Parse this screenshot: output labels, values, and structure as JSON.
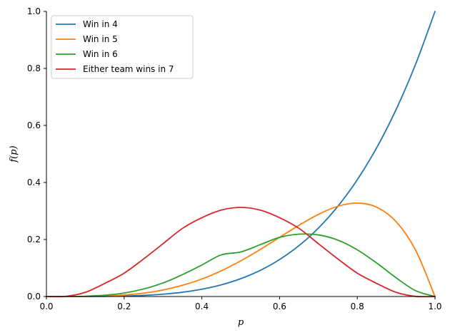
{
  "chart_data": {
    "type": "line",
    "title": "",
    "xlabel": "p",
    "ylabel": "f(p)",
    "xlim": [
      0,
      1
    ],
    "ylim": [
      0,
      1
    ],
    "x_ticks": [
      {
        "value": 0.0,
        "label": "0.0"
      },
      {
        "value": 0.2,
        "label": "0.2"
      },
      {
        "value": 0.4,
        "label": "0.4"
      },
      {
        "value": 0.6,
        "label": "0.6"
      },
      {
        "value": 0.8,
        "label": "0.8"
      },
      {
        "value": 1.0,
        "label": "1.0"
      }
    ],
    "y_ticks": [
      {
        "value": 0.0,
        "label": "0.0"
      },
      {
        "value": 0.2,
        "label": "0.2"
      },
      {
        "value": 0.4,
        "label": "0.4"
      },
      {
        "value": 0.6,
        "label": "0.6"
      },
      {
        "value": 0.8,
        "label": "0.8"
      },
      {
        "value": 1.0,
        "label": "1.0"
      }
    ],
    "grid": false,
    "legend_position": "top-left",
    "x": [
      0.0,
      0.05,
      0.1,
      0.15,
      0.2,
      0.25,
      0.3,
      0.35,
      0.4,
      0.45,
      0.5,
      0.55,
      0.6,
      0.65,
      0.7,
      0.75,
      0.8,
      0.85,
      0.9,
      0.95,
      1.0
    ],
    "series": [
      {
        "name": "Win in 4",
        "color": "#1f77b4",
        "values": [
          0.0,
          0.0,
          0.0001,
          0.0005,
          0.0016,
          0.0039,
          0.0081,
          0.015,
          0.0256,
          0.041,
          0.0625,
          0.0915,
          0.1296,
          0.1785,
          0.2401,
          0.3164,
          0.4096,
          0.522,
          0.6561,
          0.8145,
          1.0
        ]
      },
      {
        "name": "Win in 5",
        "color": "#ff7f0e",
        "values": [
          0.0,
          0.0,
          0.0004,
          0.0018,
          0.0051,
          0.0117,
          0.0227,
          0.0394,
          0.0614,
          0.0902,
          0.125,
          0.1647,
          0.2074,
          0.2499,
          0.2881,
          0.3164,
          0.3277,
          0.3132,
          0.2624,
          0.1629,
          0.0
        ]
      },
      {
        "name": "Win in 6",
        "color": "#2ca02c",
        "values": [
          0.0,
          0.0,
          0.001,
          0.0046,
          0.0123,
          0.0264,
          0.0476,
          0.0768,
          0.1106,
          0.1461,
          0.1563,
          0.1817,
          0.2074,
          0.2187,
          0.2161,
          0.1978,
          0.1638,
          0.1175,
          0.0656,
          0.0204,
          0.0
        ]
      },
      {
        "name": "Either team wins in 7",
        "color": "#d62728",
        "values": [
          0.0,
          0.0005,
          0.0146,
          0.0459,
          0.0819,
          0.1318,
          0.1852,
          0.2389,
          0.2765,
          0.3032,
          0.3125,
          0.3032,
          0.2765,
          0.2389,
          0.1852,
          0.1318,
          0.0819,
          0.0459,
          0.0146,
          0.0005,
          0.0
        ]
      }
    ]
  }
}
